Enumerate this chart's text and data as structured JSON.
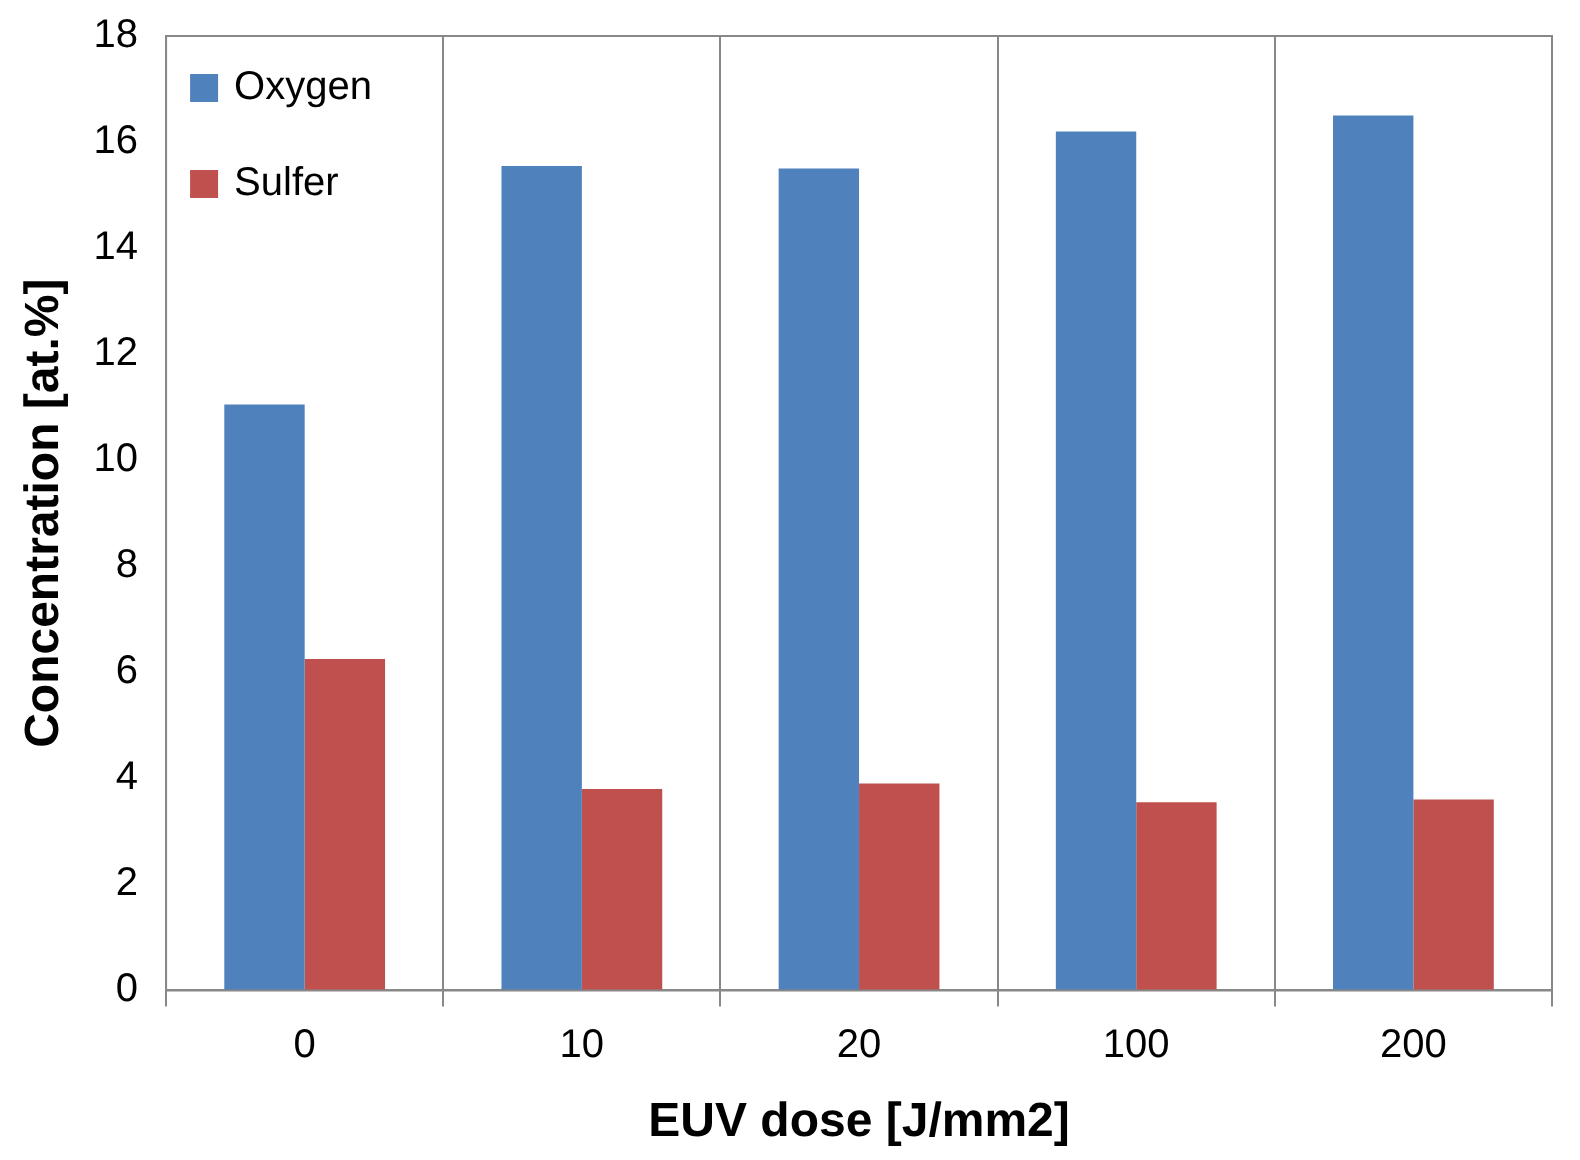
{
  "chart_data": {
    "type": "bar",
    "xlabel": "EUV dose [J/mm2]",
    "ylabel": "Concentration [at.%]",
    "categories": [
      "0",
      "10",
      "20",
      "100",
      "200"
    ],
    "series": [
      {
        "name": "Oxygen",
        "color": "#4f81bd",
        "values": [
          11.05,
          15.55,
          15.5,
          16.2,
          16.5
        ]
      },
      {
        "name": "Sulfer",
        "color": "#c0504d",
        "values": [
          6.25,
          3.8,
          3.9,
          3.55,
          3.6
        ]
      }
    ],
    "ylim": [
      0,
      18
    ],
    "yticks": [
      0,
      2,
      4,
      6,
      8,
      10,
      12,
      14,
      16,
      18
    ],
    "grid": "x",
    "legend": "top left"
  }
}
